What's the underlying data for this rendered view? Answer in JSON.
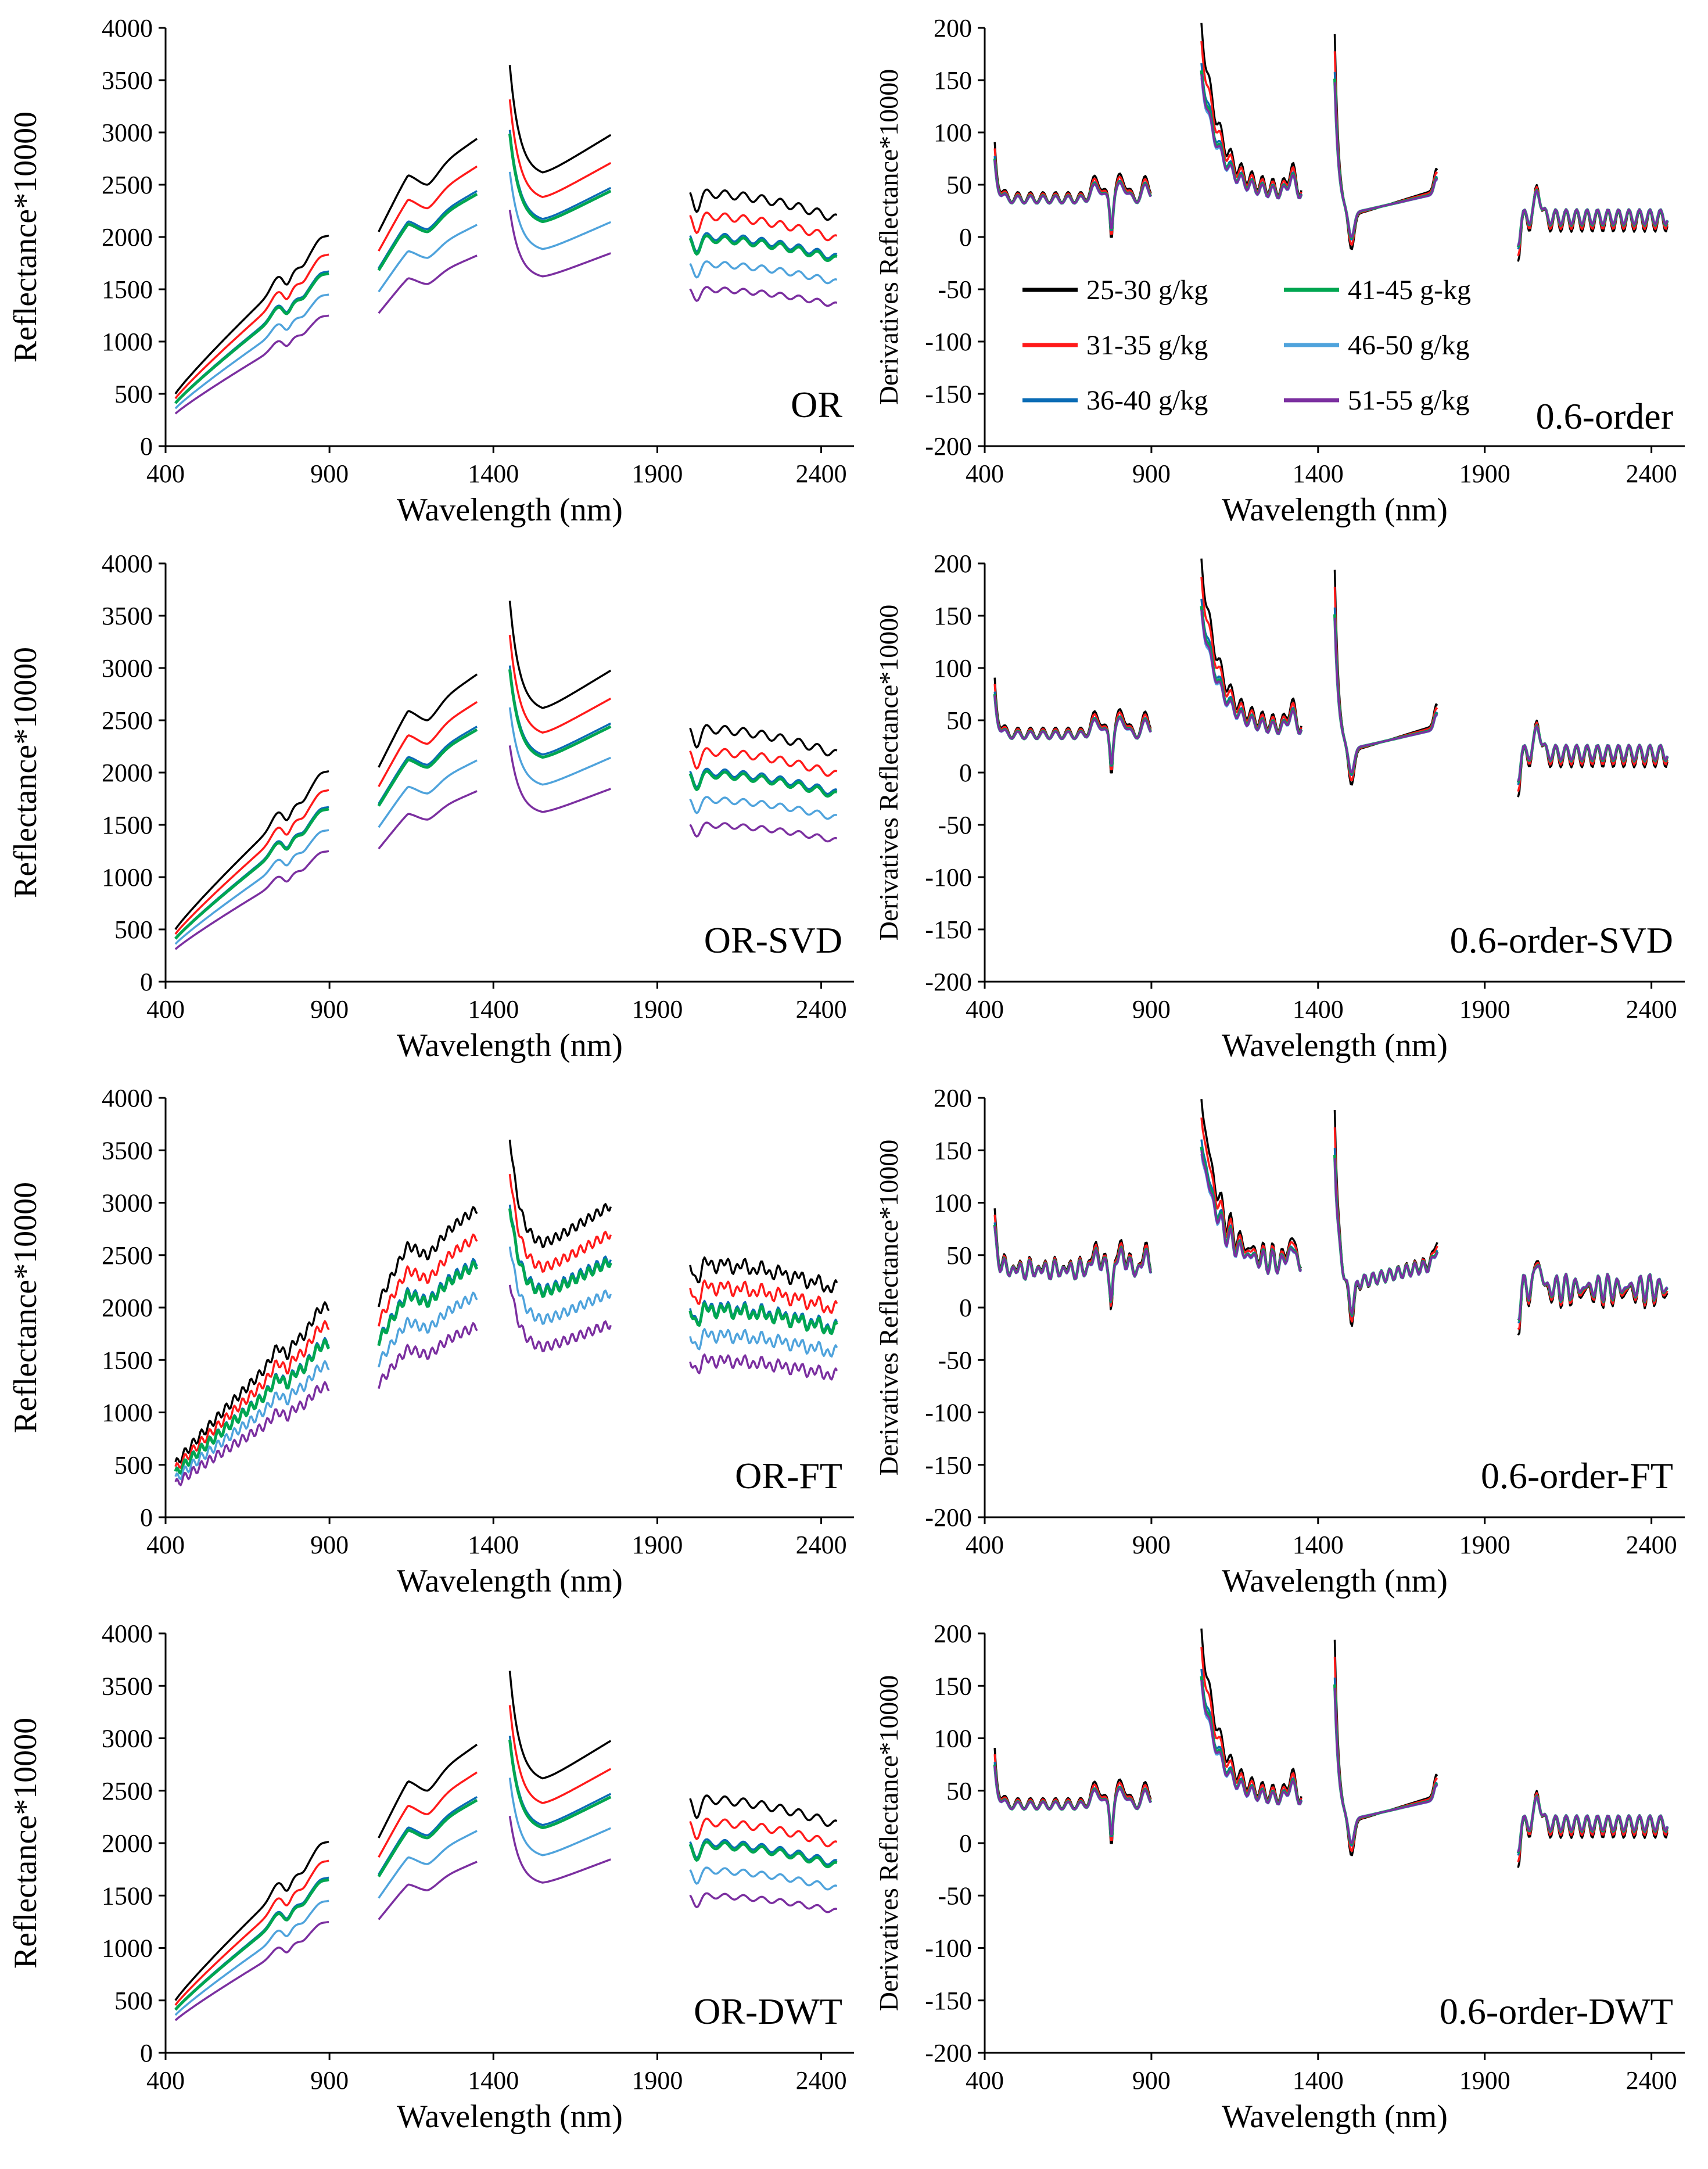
{
  "figure": {
    "x_axis": {
      "label": "Wavelength (nm)",
      "range": [
        400,
        2500
      ],
      "ticks": [
        400,
        900,
        1400,
        1900,
        2400
      ],
      "bands": [
        [
          430,
          900
        ],
        [
          1050,
          1350
        ],
        [
          1450,
          1760
        ],
        [
          2000,
          2450
        ]
      ]
    },
    "legend": {
      "entries": [
        {
          "name": "25-30 g/kg",
          "color": "#000000"
        },
        {
          "name": "41-45 g-kg",
          "color": "#00a651"
        },
        {
          "name": "31-35 g/kg",
          "color": "#ff1a1a"
        },
        {
          "name": "46-50 g/kg",
          "color": "#4fa3dc"
        },
        {
          "name": "36-40 g/kg",
          "color": "#0a6bb5"
        },
        {
          "name": "51-55 g/kg",
          "color": "#7b2fa0"
        }
      ]
    }
  },
  "chart_data": [
    {
      "type": "line",
      "id": "or",
      "col": 0,
      "row": 0,
      "title": "OR",
      "xlabel": "Wavelength (nm)",
      "ylabel": "Reflectance*10000",
      "xlim": [
        400,
        2500
      ],
      "ylim": [
        0,
        4000
      ],
      "yticks": [
        0,
        500,
        1000,
        1500,
        2000,
        2500,
        3000,
        3500,
        4000
      ],
      "series": [
        {
          "name": "25-30 g/kg",
          "color": "#000000",
          "level": 1.0
        },
        {
          "name": "31-35 g/kg",
          "color": "#ff1a1a",
          "level": 0.91
        },
        {
          "name": "36-40 g/kg",
          "color": "#0a6bb5",
          "level": 0.83
        },
        {
          "name": "41-45 g-kg",
          "color": "#00a651",
          "level": 0.82
        },
        {
          "name": "46-50 g/kg",
          "color": "#4fa3dc",
          "level": 0.72
        },
        {
          "name": "51-55 g/kg",
          "color": "#7b2fa0",
          "level": 0.62
        }
      ]
    },
    {
      "type": "line",
      "id": "frac",
      "col": 1,
      "row": 0,
      "title": "0.6-order",
      "xlabel": "Wavelength (nm)",
      "ylabel": "Derivatives Reflectance*10000",
      "xlim": [
        400,
        2500
      ],
      "ylim": [
        -200,
        200
      ],
      "yticks": [
        -200,
        -150,
        -100,
        -50,
        0,
        50,
        100,
        150,
        200
      ],
      "series": [
        {
          "name": "25-30 g/kg",
          "color": "#000000",
          "level": 1.0
        },
        {
          "name": "31-35 g/kg",
          "color": "#ff1a1a",
          "level": 0.9
        },
        {
          "name": "36-40 g/kg",
          "color": "#0a6bb5",
          "level": 0.78
        },
        {
          "name": "41-45 g-kg",
          "color": "#00a651",
          "level": 0.74
        },
        {
          "name": "46-50 g/kg",
          "color": "#4fa3dc",
          "level": 0.7
        },
        {
          "name": "51-55 g/kg",
          "color": "#7b2fa0",
          "level": 0.72
        }
      ]
    },
    {
      "type": "line",
      "id": "or",
      "col": 0,
      "row": 1,
      "title": "OR-SVD",
      "xlabel": "Wavelength (nm)",
      "ylabel": "Reflectance*10000",
      "xlim": [
        400,
        2500
      ],
      "ylim": [
        0,
        4000
      ],
      "yticks": [
        0,
        500,
        1000,
        1500,
        2000,
        2500,
        3000,
        3500,
        4000
      ],
      "series": [
        {
          "name": "25-30 g/kg",
          "color": "#000000",
          "level": 1.0
        },
        {
          "name": "31-35 g/kg",
          "color": "#ff1a1a",
          "level": 0.91
        },
        {
          "name": "36-40 g/kg",
          "color": "#0a6bb5",
          "level": 0.83
        },
        {
          "name": "41-45 g-kg",
          "color": "#00a651",
          "level": 0.82
        },
        {
          "name": "46-50 g/kg",
          "color": "#4fa3dc",
          "level": 0.72
        },
        {
          "name": "51-55 g/kg",
          "color": "#7b2fa0",
          "level": 0.62
        }
      ]
    },
    {
      "type": "line",
      "id": "frac",
      "col": 1,
      "row": 1,
      "title": "0.6-order-SVD",
      "xlabel": "Wavelength (nm)",
      "ylabel": "Derivatives Reflectance*10000",
      "xlim": [
        400,
        2500
      ],
      "ylim": [
        -200,
        200
      ],
      "yticks": [
        -200,
        -150,
        -100,
        -50,
        0,
        50,
        100,
        150,
        200
      ],
      "series": [
        {
          "name": "25-30 g/kg",
          "color": "#000000",
          "level": 1.0
        },
        {
          "name": "31-35 g/kg",
          "color": "#ff1a1a",
          "level": 0.9
        },
        {
          "name": "36-40 g/kg",
          "color": "#0a6bb5",
          "level": 0.78
        },
        {
          "name": "41-45 g-kg",
          "color": "#00a651",
          "level": 0.74
        },
        {
          "name": "46-50 g/kg",
          "color": "#4fa3dc",
          "level": 0.7
        },
        {
          "name": "51-55 g/kg",
          "color": "#7b2fa0",
          "level": 0.72
        }
      ]
    },
    {
      "type": "line",
      "id": "or",
      "col": 0,
      "row": 2,
      "title": "OR-FT",
      "xlabel": "Wavelength (nm)",
      "ylabel": "Reflectance*10000",
      "xlim": [
        400,
        2500
      ],
      "ylim": [
        0,
        4000
      ],
      "yticks": [
        0,
        500,
        1000,
        1500,
        2000,
        2500,
        3000,
        3500,
        4000
      ],
      "series": [
        {
          "name": "25-30 g/kg",
          "color": "#000000",
          "level": 1.0
        },
        {
          "name": "31-35 g/kg",
          "color": "#ff1a1a",
          "level": 0.91
        },
        {
          "name": "36-40 g/kg",
          "color": "#0a6bb5",
          "level": 0.83
        },
        {
          "name": "41-45 g-kg",
          "color": "#00a651",
          "level": 0.82
        },
        {
          "name": "46-50 g/kg",
          "color": "#4fa3dc",
          "level": 0.72
        },
        {
          "name": "51-55 g/kg",
          "color": "#7b2fa0",
          "level": 0.62
        }
      ]
    },
    {
      "type": "line",
      "id": "frac",
      "col": 1,
      "row": 2,
      "title": "0.6-order-FT",
      "xlabel": "Wavelength (nm)",
      "ylabel": "Derivatives Reflectance*10000",
      "xlim": [
        400,
        2500
      ],
      "ylim": [
        -200,
        200
      ],
      "yticks": [
        -200,
        -150,
        -100,
        -50,
        0,
        50,
        100,
        150,
        200
      ],
      "series": [
        {
          "name": "25-30 g/kg",
          "color": "#000000",
          "level": 1.0
        },
        {
          "name": "31-35 g/kg",
          "color": "#ff1a1a",
          "level": 0.9
        },
        {
          "name": "36-40 g/kg",
          "color": "#0a6bb5",
          "level": 0.78
        },
        {
          "name": "41-45 g-kg",
          "color": "#00a651",
          "level": 0.74
        },
        {
          "name": "46-50 g/kg",
          "color": "#4fa3dc",
          "level": 0.7
        },
        {
          "name": "51-55 g/kg",
          "color": "#7b2fa0",
          "level": 0.72
        }
      ]
    },
    {
      "type": "line",
      "id": "or",
      "col": 0,
      "row": 3,
      "title": "OR-DWT",
      "xlabel": "Wavelength (nm)",
      "ylabel": "Reflectance*10000",
      "xlim": [
        400,
        2500
      ],
      "ylim": [
        0,
        4000
      ],
      "yticks": [
        0,
        500,
        1000,
        1500,
        2000,
        2500,
        3000,
        3500,
        4000
      ],
      "series": [
        {
          "name": "25-30 g/kg",
          "color": "#000000",
          "level": 1.0
        },
        {
          "name": "31-35 g/kg",
          "color": "#ff1a1a",
          "level": 0.91
        },
        {
          "name": "36-40 g/kg",
          "color": "#0a6bb5",
          "level": 0.83
        },
        {
          "name": "41-45 g-kg",
          "color": "#00a651",
          "level": 0.82
        },
        {
          "name": "46-50 g/kg",
          "color": "#4fa3dc",
          "level": 0.72
        },
        {
          "name": "51-55 g/kg",
          "color": "#7b2fa0",
          "level": 0.62
        }
      ]
    },
    {
      "type": "line",
      "id": "frac",
      "col": 1,
      "row": 3,
      "title": "0.6-order-DWT",
      "xlabel": "Wavelength (nm)",
      "ylabel": "Derivatives Reflectance*10000",
      "xlim": [
        400,
        2500
      ],
      "ylim": [
        -200,
        200
      ],
      "yticks": [
        -200,
        -150,
        -100,
        -50,
        0,
        50,
        100,
        150,
        200
      ],
      "series": [
        {
          "name": "25-30 g/kg",
          "color": "#000000",
          "level": 1.0
        },
        {
          "name": "31-35 g/kg",
          "color": "#ff1a1a",
          "level": 0.9
        },
        {
          "name": "36-40 g/kg",
          "color": "#0a6bb5",
          "level": 0.78
        },
        {
          "name": "41-45 g-kg",
          "color": "#00a651",
          "level": 0.74
        },
        {
          "name": "46-50 g/kg",
          "color": "#4fa3dc",
          "level": 0.7
        },
        {
          "name": "51-55 g/kg",
          "color": "#7b2fa0",
          "level": 0.72
        }
      ]
    }
  ]
}
